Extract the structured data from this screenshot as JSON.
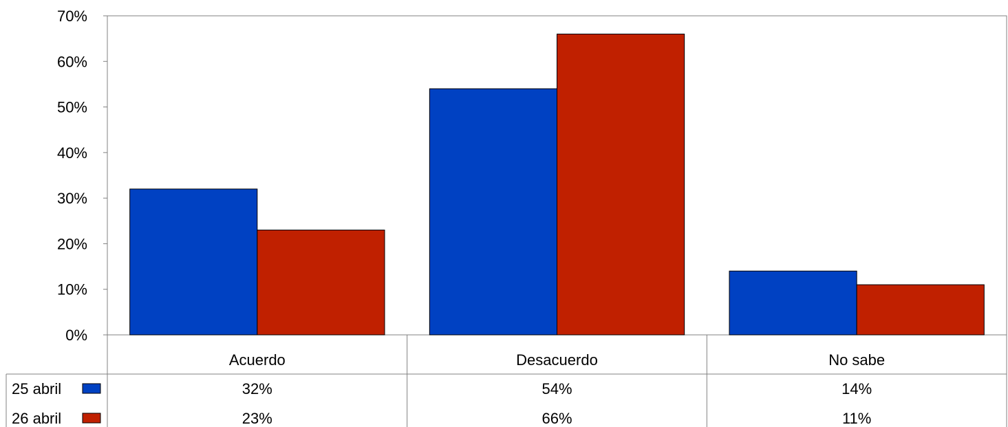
{
  "chart_data": {
    "type": "bar",
    "categories": [
      "Acuerdo",
      "Desacuerdo",
      "No sabe"
    ],
    "series": [
      {
        "name": "25 abril",
        "values": [
          32,
          54,
          14
        ],
        "labels": [
          "32%",
          "54%",
          "14%"
        ],
        "color": "#0041C2"
      },
      {
        "name": "26 abril",
        "values": [
          23,
          66,
          11
        ],
        "labels": [
          "23%",
          "66%",
          "11%"
        ],
        "color": "#C02000"
      }
    ],
    "y_ticks": [
      "0%",
      "10%",
      "20%",
      "30%",
      "40%",
      "50%",
      "60%",
      "70%"
    ],
    "ylim": [
      0,
      70
    ],
    "grid": false,
    "data_table": true
  }
}
